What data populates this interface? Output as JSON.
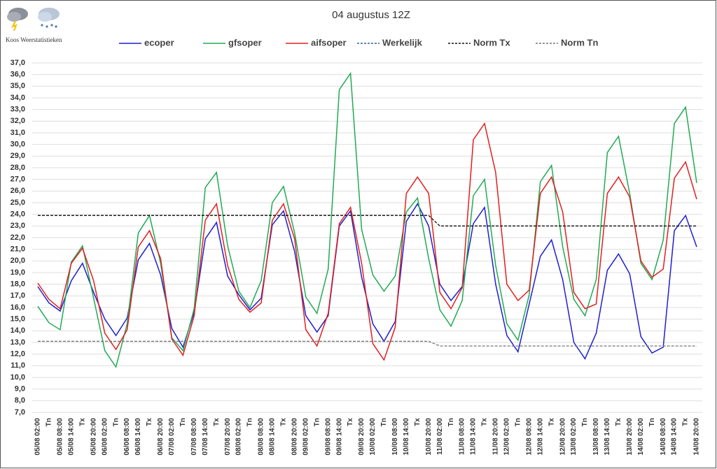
{
  "brand": "Koos Weerstatistieken",
  "chart_data": {
    "type": "line",
    "title": "04 augustus 12Z",
    "categories": [
      "05/08 02:00",
      "Tn",
      "05/08 08:00",
      "05/08 14:00",
      "Tx",
      "05/08 20:00",
      "06/08 02:00",
      "Tn",
      "06/08 08:00",
      "06/08 14:00",
      "Tx",
      "06/08 20:00",
      "07/08 02:00",
      "Tn",
      "07/08 08:00",
      "07/08 14:00",
      "Tx",
      "07/08 20:00",
      "08/08 02:00",
      "Tn",
      "08/08 08:00",
      "08/08 14:00",
      "Tx",
      "08/08 20:00",
      "09/08 02:00",
      "Tn",
      "09/08 08:00",
      "09/08 14:00",
      "Tx",
      "09/08 20:00",
      "10/08 02:00",
      "Tn",
      "10/08 08:00",
      "10/08 14:00",
      "Tx",
      "10/08 20:00",
      "11/08 02:00",
      "Tn",
      "11/08 08:00",
      "11/08 14:00",
      "Tx",
      "11/08 20:00",
      "12/08 02:00",
      "Tn",
      "12/08 08:00",
      "12/08 14:00",
      "Tx",
      "12/08 20:00",
      "13/08 02:00",
      "Tn",
      "13/08 08:00",
      "13/08 14:00",
      "Tx",
      "13/08 20:00",
      "14/08 02:00",
      "Tn",
      "14/08 08:00",
      "14/08 14:00",
      "Tx",
      "14/08 20:00"
    ],
    "series": [
      {
        "name": "ecoper",
        "color": "#1f1fd0",
        "dashed": false,
        "values": [
          17.8,
          16.4,
          15.7,
          18.3,
          19.8,
          17.3,
          15.0,
          13.6,
          15.1,
          20.1,
          21.5,
          18.8,
          14.2,
          12.6,
          15.6,
          21.9,
          23.3,
          18.7,
          17.1,
          15.8,
          16.8,
          23.1,
          24.3,
          20.8,
          15.3,
          13.9,
          15.3,
          23.0,
          24.3,
          18.6,
          14.6,
          13.1,
          14.8,
          23.4,
          24.9,
          23.0,
          18.0,
          16.6,
          17.8,
          23.2,
          24.6,
          18.0,
          13.6,
          12.2,
          16.3,
          20.4,
          21.8,
          18.4,
          13.0,
          11.6,
          13.8,
          19.2,
          20.6,
          18.9,
          13.5,
          12.1,
          12.6,
          22.6,
          23.9,
          21.2
        ]
      },
      {
        "name": "gfsoper",
        "color": "#22aa55",
        "dashed": false,
        "values": [
          16.1,
          14.7,
          14.1,
          19.9,
          21.3,
          16.8,
          12.3,
          10.9,
          14.6,
          22.4,
          23.9,
          19.8,
          13.4,
          12.3,
          15.9,
          26.3,
          27.6,
          21.3,
          17.4,
          16.0,
          18.3,
          25.0,
          26.4,
          22.4,
          16.9,
          15.5,
          19.3,
          34.7,
          36.1,
          22.7,
          18.8,
          17.4,
          18.7,
          24.2,
          25.4,
          20.2,
          15.8,
          14.4,
          16.6,
          25.6,
          27.0,
          19.6,
          14.6,
          13.2,
          17.1,
          26.8,
          28.2,
          21.2,
          16.7,
          15.3,
          18.4,
          29.3,
          30.7,
          25.8,
          19.8,
          18.4,
          21.8,
          31.8,
          33.2,
          26.7
        ]
      },
      {
        "name": "aifsoper",
        "color": "#e02020",
        "dashed": false,
        "values": [
          18.1,
          16.7,
          15.9,
          19.8,
          21.1,
          18.3,
          13.8,
          12.4,
          14.1,
          21.2,
          22.6,
          20.2,
          13.3,
          11.9,
          15.3,
          23.5,
          24.9,
          19.6,
          16.7,
          15.6,
          16.4,
          23.5,
          24.9,
          21.9,
          14.1,
          12.7,
          15.5,
          23.2,
          24.6,
          19.8,
          12.9,
          11.5,
          14.3,
          25.8,
          27.2,
          25.8,
          17.3,
          15.9,
          17.7,
          30.4,
          31.8,
          27.6,
          18.0,
          16.6,
          17.5,
          25.8,
          27.2,
          24.2,
          17.3,
          15.9,
          16.3,
          25.8,
          27.2,
          25.5,
          20.0,
          18.6,
          19.3,
          27.1,
          28.5,
          25.3
        ]
      },
      {
        "name": "Werkelijk",
        "color": "#3a5a9a",
        "dashed": true,
        "values": [
          null,
          null,
          null,
          null,
          null,
          null,
          null,
          null,
          null,
          null,
          null,
          null,
          null,
          null,
          null,
          null,
          null,
          null,
          null,
          null,
          null,
          null,
          null,
          null,
          null,
          null,
          null,
          null,
          null,
          null,
          null,
          null,
          null,
          null,
          null,
          null,
          null,
          null,
          null,
          null,
          null,
          null,
          null,
          null,
          null,
          null,
          null,
          null,
          null,
          null,
          null,
          null,
          null,
          null,
          null,
          null,
          null,
          null,
          null,
          null
        ]
      },
      {
        "name": "Norm Tx",
        "color": "#111111",
        "dashed": true,
        "values": [
          23.9,
          23.9,
          23.9,
          23.9,
          23.9,
          23.9,
          23.9,
          23.9,
          23.9,
          23.9,
          23.9,
          23.9,
          23.9,
          23.9,
          23.9,
          23.9,
          23.9,
          23.9,
          23.9,
          23.9,
          23.9,
          23.9,
          23.9,
          23.9,
          23.9,
          23.9,
          23.9,
          23.9,
          23.9,
          23.9,
          23.9,
          23.9,
          23.9,
          23.9,
          23.9,
          23.9,
          23.0,
          23.0,
          23.0,
          23.0,
          23.0,
          23.0,
          23.0,
          23.0,
          23.0,
          23.0,
          23.0,
          23.0,
          23.0,
          23.0,
          23.0,
          23.0,
          23.0,
          23.0,
          23.0,
          23.0,
          23.0,
          23.0,
          23.0,
          23.0
        ]
      },
      {
        "name": "Norm Tn",
        "color": "#777777",
        "dashed": true,
        "values": [
          13.1,
          13.1,
          13.1,
          13.1,
          13.1,
          13.1,
          13.1,
          13.1,
          13.1,
          13.1,
          13.1,
          13.1,
          13.1,
          13.1,
          13.1,
          13.1,
          13.1,
          13.1,
          13.1,
          13.1,
          13.1,
          13.1,
          13.1,
          13.1,
          13.1,
          13.1,
          13.1,
          13.1,
          13.1,
          13.1,
          13.1,
          13.1,
          13.1,
          13.1,
          13.1,
          13.1,
          12.7,
          12.7,
          12.7,
          12.7,
          12.7,
          12.7,
          12.7,
          12.7,
          12.7,
          12.7,
          12.7,
          12.7,
          12.7,
          12.7,
          12.7,
          12.7,
          12.7,
          12.7,
          12.7,
          12.7,
          12.7,
          12.7,
          12.7,
          12.7
        ]
      }
    ],
    "ylim": [
      7,
      37
    ],
    "yticks": [
      {
        "value": 7,
        "label": "7,0"
      },
      {
        "value": 8,
        "label": "8,0"
      },
      {
        "value": 9,
        "label": "9,0"
      },
      {
        "value": 10,
        "label": "10,0"
      },
      {
        "value": 11,
        "label": "11,0"
      },
      {
        "value": 12,
        "label": "12,0"
      },
      {
        "value": 13,
        "label": "13,0"
      },
      {
        "value": 14,
        "label": "14,0"
      },
      {
        "value": 15,
        "label": "15,0"
      },
      {
        "value": 16,
        "label": "16,0"
      },
      {
        "value": 17,
        "label": "17,0"
      },
      {
        "value": 18,
        "label": "18,0"
      },
      {
        "value": 19,
        "label": "19,0"
      },
      {
        "value": 20,
        "label": "20,0"
      },
      {
        "value": 21,
        "label": "21,0"
      },
      {
        "value": 22,
        "label": "22,0"
      },
      {
        "value": 23,
        "label": "23,0"
      },
      {
        "value": 24,
        "label": "24,0"
      },
      {
        "value": 25,
        "label": "25,0"
      },
      {
        "value": 26,
        "label": "26,0"
      },
      {
        "value": 27,
        "label": "27,0"
      },
      {
        "value": 28,
        "label": "28,0"
      },
      {
        "value": 29,
        "label": "29,0"
      },
      {
        "value": 30,
        "label": "30,0"
      },
      {
        "value": 31,
        "label": "31,0"
      },
      {
        "value": 32,
        "label": "32,0"
      },
      {
        "value": 33,
        "label": "33,0"
      },
      {
        "value": 34,
        "label": "34,0"
      },
      {
        "value": 35,
        "label": "35,0"
      },
      {
        "value": 36,
        "label": "36,0"
      },
      {
        "value": 37,
        "label": "37,0"
      }
    ],
    "grid": true,
    "legend": "top"
  }
}
